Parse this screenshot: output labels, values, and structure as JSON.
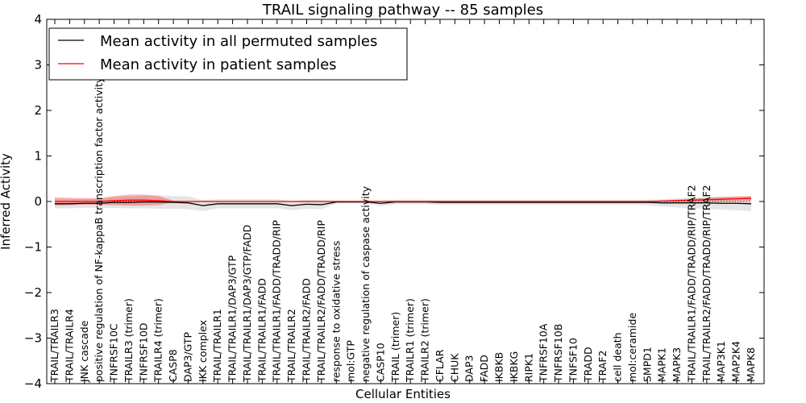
{
  "chart_data": {
    "type": "line",
    "title": "TRAIL signaling pathway -- 85 samples",
    "xlabel": "Cellular Entities",
    "ylabel": "Inferred Activity",
    "ylim": [
      -4,
      4
    ],
    "yticks": [
      4,
      3,
      2,
      1,
      0,
      -1,
      -2,
      -3,
      -4
    ],
    "ytick_labels": [
      "4",
      "3",
      "2",
      "1",
      "0",
      "−1",
      "−2",
      "−3",
      "−4"
    ],
    "grid": false,
    "legend_position": "top-left",
    "reference_line": 0,
    "categories": [
      "TRAIL/TRAILR3",
      "TRAIL/TRAILR4",
      "JNK cascade",
      "positive regulation of NF-kappaB transcription factor activity",
      "TNFRSF10C",
      "TRAILR3 (trimer)",
      "TNFRSF10D",
      "TRAILR4 (trimer)",
      "CASP8",
      "DAP3/GTP",
      "IKK complex",
      "TRAIL/TRAILR1",
      "TRAIL/TRAILR1/DAP3/GTP",
      "TRAIL/TRAILR1/DAP3/GTP/FADD",
      "TRAIL/TRAILR1/FADD",
      "TRAIL/TRAILR1/FADD/TRADD/RIP",
      "TRAIL/TRAILR2",
      "TRAIL/TRAILR2/FADD",
      "TRAIL/TRAILR2/FADD/TRADD/RIP",
      "response to oxidative stress",
      "mol:GTP",
      "negative regulation of caspase activity",
      "CASP10",
      "TRAIL (trimer)",
      "TRAILR1 (trimer)",
      "TRAILR2 (trimer)",
      "CFLAR",
      "CHUK",
      "DAP3",
      "FADD",
      "IKBKB",
      "IKBKG",
      "RIPK1",
      "TNFRSF10A",
      "TNFRSF10B",
      "TNFSF10",
      "TRADD",
      "TRAF2",
      "cell death",
      "mol:ceramide",
      "SMPD1",
      "MAPK1",
      "MAPK3",
      "TRAIL/TRAILR1/FADD/TRADD/RIP/TRAF2",
      "TRAIL/TRAILR2/FADD/TRADD/RIP/TRAF2",
      "MAP3K1",
      "MAP2K4",
      "MAPK8"
    ],
    "series": [
      {
        "name": "Mean activity in all permuted samples",
        "color": "#000000",
        "values": [
          -0.05,
          -0.05,
          -0.04,
          -0.04,
          -0.02,
          -0.02,
          -0.01,
          -0.01,
          -0.02,
          -0.03,
          -0.09,
          -0.05,
          -0.05,
          -0.05,
          -0.05,
          -0.05,
          -0.09,
          -0.06,
          -0.07,
          -0.01,
          -0.01,
          -0.01,
          -0.04,
          -0.01,
          -0.01,
          -0.01,
          -0.02,
          -0.02,
          -0.02,
          -0.02,
          -0.02,
          -0.02,
          -0.02,
          -0.02,
          -0.02,
          -0.02,
          -0.02,
          -0.02,
          -0.02,
          -0.02,
          -0.02,
          -0.03,
          -0.03,
          -0.03,
          -0.03,
          -0.04,
          -0.04,
          -0.05
        ],
        "band": [
          0.1,
          0.1,
          0.1,
          0.1,
          0.12,
          0.13,
          0.14,
          0.15,
          0.14,
          0.14,
          0.12,
          0.1,
          0.1,
          0.1,
          0.1,
          0.1,
          0.1,
          0.1,
          0.1,
          0.03,
          0.03,
          0.03,
          0.06,
          0.05,
          0.05,
          0.05,
          0.05,
          0.05,
          0.05,
          0.05,
          0.05,
          0.05,
          0.05,
          0.05,
          0.05,
          0.05,
          0.05,
          0.05,
          0.05,
          0.05,
          0.06,
          0.08,
          0.1,
          0.12,
          0.13,
          0.14,
          0.15,
          0.16
        ]
      },
      {
        "name": "Mean activity in patient samples",
        "color": "#ff0000",
        "values": [
          0.0,
          0.0,
          0.0,
          0.0,
          0.02,
          0.03,
          0.03,
          0.02,
          0.0,
          0.0,
          0.0,
          0.0,
          0.0,
          0.0,
          0.0,
          0.0,
          0.0,
          0.0,
          0.0,
          0.0,
          0.0,
          0.0,
          0.0,
          0.0,
          0.0,
          0.0,
          0.0,
          0.0,
          0.0,
          0.0,
          0.0,
          0.0,
          0.0,
          0.0,
          0.0,
          0.0,
          0.0,
          0.0,
          0.0,
          0.0,
          0.0,
          0.01,
          0.02,
          0.03,
          0.04,
          0.05,
          0.06,
          0.07
        ],
        "band": [
          0.09,
          0.08,
          0.07,
          0.07,
          0.1,
          0.12,
          0.12,
          0.1,
          0.02,
          0.01,
          0.01,
          0.01,
          0.01,
          0.01,
          0.01,
          0.01,
          0.01,
          0.01,
          0.01,
          0.01,
          0.01,
          0.01,
          0.01,
          0.01,
          0.01,
          0.01,
          0.01,
          0.01,
          0.01,
          0.01,
          0.01,
          0.01,
          0.01,
          0.01,
          0.01,
          0.01,
          0.01,
          0.01,
          0.01,
          0.01,
          0.01,
          0.01,
          0.02,
          0.03,
          0.04,
          0.05,
          0.05,
          0.05
        ]
      }
    ]
  }
}
